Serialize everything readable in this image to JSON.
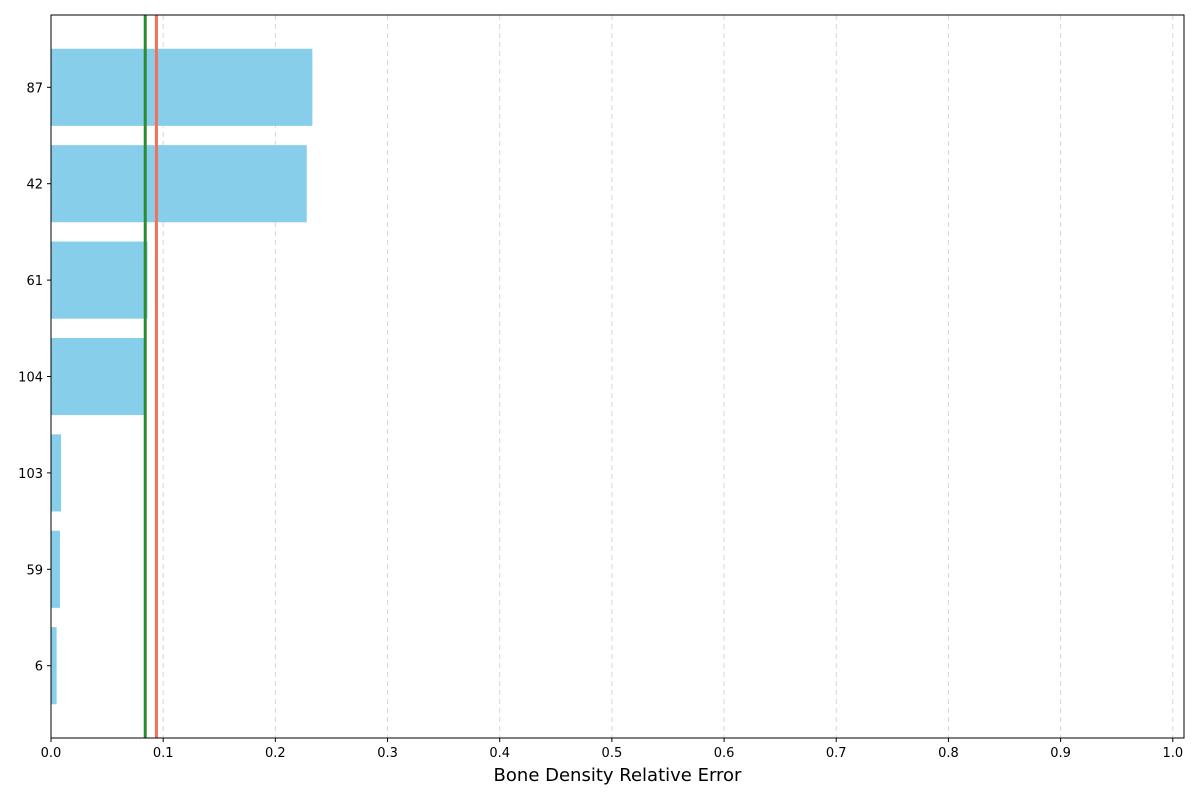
{
  "chart_data": {
    "type": "bar",
    "orientation": "horizontal",
    "categories": [
      "6",
      "59",
      "103",
      "104",
      "61",
      "42",
      "87"
    ],
    "values": [
      0.005,
      0.008,
      0.009,
      0.083,
      0.086,
      0.228,
      0.233
    ],
    "bar_color": "#87ceeb",
    "xlabel": "Bone Density Relative Error",
    "ylabel": "",
    "xlim": [
      0.0,
      1.01
    ],
    "xticks": [
      "0.0",
      "0.1",
      "0.2",
      "0.3",
      "0.4",
      "0.5",
      "0.6",
      "0.7",
      "0.8",
      "0.9",
      "1.0"
    ],
    "grid": "x-dashed",
    "reference_lines": [
      {
        "value": 0.084,
        "color": "#2e8b2e"
      },
      {
        "value": 0.094,
        "color": "#f4705a"
      }
    ]
  }
}
